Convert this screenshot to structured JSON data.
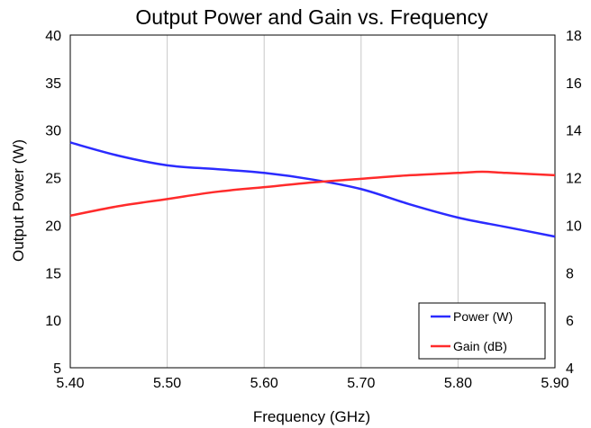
{
  "chart_data": {
    "type": "line",
    "title": "Output Power and Gain vs. Frequency",
    "xlabel": "Frequency (GHz)",
    "ylabel": "Output Power (W)",
    "y2label": "",
    "xlim": [
      5.4,
      5.9
    ],
    "ylim": [
      5,
      40
    ],
    "y2lim": [
      4,
      18
    ],
    "xticks": [
      "5.40",
      "5.50",
      "5.60",
      "5.70",
      "5.80",
      "5.90"
    ],
    "yticks": [
      "5",
      "10",
      "15",
      "20",
      "25",
      "30",
      "35",
      "40"
    ],
    "y2ticks": [
      "4",
      "6",
      "8",
      "10",
      "12",
      "14",
      "16",
      "18"
    ],
    "grid": "vertical",
    "legend": "bottom-right",
    "series": [
      {
        "name": "Power (W)",
        "axis": "left",
        "color": "#2b2bff",
        "x": [
          5.4,
          5.45,
          5.5,
          5.55,
          5.6,
          5.65,
          5.7,
          5.75,
          5.8,
          5.85,
          5.9
        ],
        "y": [
          28.7,
          27.3,
          26.3,
          25.9,
          25.5,
          24.8,
          23.8,
          22.2,
          20.8,
          19.8,
          18.8
        ]
      },
      {
        "name": "Gain (dB)",
        "axis": "right",
        "color": "#ff2b2b",
        "x": [
          5.4,
          5.45,
          5.5,
          5.55,
          5.6,
          5.65,
          5.7,
          5.75,
          5.8,
          5.825,
          5.85,
          5.9
        ],
        "y": [
          10.4,
          10.8,
          11.1,
          11.4,
          11.6,
          11.8,
          11.95,
          12.1,
          12.2,
          12.25,
          12.2,
          12.1
        ]
      }
    ]
  }
}
